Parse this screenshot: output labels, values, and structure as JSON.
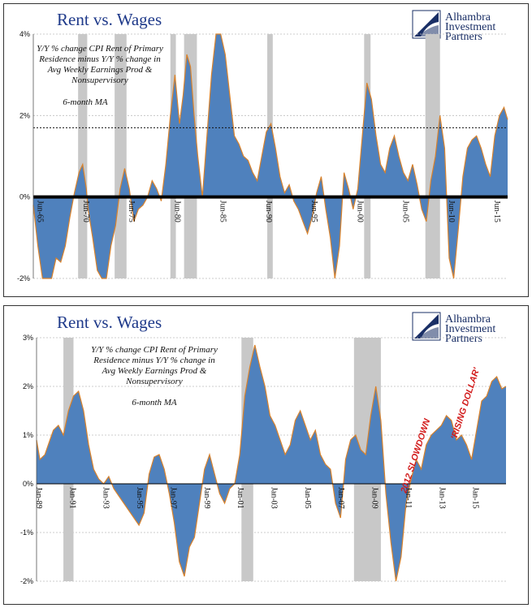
{
  "brand": {
    "line1": "Alhambra",
    "line2": "Investment",
    "line3": "Partners"
  },
  "colors": {
    "area_fill": "#4f81bd",
    "area_stroke": "#d9822b",
    "recession": "#c8c8c8",
    "title": "#1f3a8a",
    "annotation": "#d21c1c"
  },
  "chart_data": [
    {
      "type": "area",
      "title": "Rent vs. Wages",
      "note_lines": [
        "Y/Y % change CPI Rent of Primary",
        "Residence minus Y/Y % change in",
        "Avg Weekly Earnings Prod &",
        "Nonsupervisory"
      ],
      "note_ma": "6-month MA",
      "ylim": [
        -2,
        4
      ],
      "yticks": [
        "-2%",
        "0%",
        "2%",
        "4%"
      ],
      "xlim": [
        1965,
        2016.9
      ],
      "xticks": [
        {
          "x": 1965.5,
          "label": "Jun-65"
        },
        {
          "x": 1970.5,
          "label": "Jun-70"
        },
        {
          "x": 1975.5,
          "label": "Jun-75"
        },
        {
          "x": 1980.5,
          "label": "Jun-80"
        },
        {
          "x": 1985.5,
          "label": "Jun-85"
        },
        {
          "x": 1990.5,
          "label": "Jun-90"
        },
        {
          "x": 1995.5,
          "label": "Jun-95"
        },
        {
          "x": 2000.5,
          "label": "Jun-00"
        },
        {
          "x": 2005.5,
          "label": "Jun-05"
        },
        {
          "x": 2010.5,
          "label": "Jun-10"
        },
        {
          "x": 2015.5,
          "label": "Jun-15"
        }
      ],
      "reference_line": 1.7,
      "recessions": [
        [
          1969.9,
          1970.9
        ],
        [
          1973.9,
          1975.2
        ],
        [
          1980.0,
          1980.6
        ],
        [
          1981.5,
          1982.9
        ],
        [
          1990.6,
          1991.2
        ],
        [
          2001.2,
          2001.9
        ],
        [
          2007.9,
          2009.5
        ]
      ],
      "series": [
        {
          "x": [
            1965.0,
            1965.5,
            1966.0,
            1966.5,
            1967.0,
            1967.5,
            1968.0,
            1968.5,
            1969.0,
            1969.5,
            1970.0,
            1970.4,
            1970.8,
            1971.0,
            1971.5,
            1972.0,
            1972.5,
            1973.0,
            1973.5,
            1974.0,
            1974.5,
            1975.0,
            1975.5,
            1976.0,
            1976.5,
            1977.0,
            1977.5,
            1978.0,
            1978.5,
            1979.0,
            1979.5,
            1980.0,
            1980.5,
            1981.0,
            1981.4,
            1981.8,
            1982.2,
            1982.6,
            1983.0,
            1983.5,
            1984.0,
            1984.5,
            1985.0,
            1985.5,
            1986.0,
            1986.5,
            1987.0,
            1987.5,
            1988.0,
            1988.5,
            1989.0,
            1989.5,
            1990.0,
            1990.5,
            1991.0,
            1991.5,
            1992.0,
            1992.5,
            1993.0,
            1993.5,
            1994.0,
            1994.5,
            1995.0,
            1995.5,
            1996.0,
            1996.5,
            1997.0,
            1997.5,
            1998.0,
            1998.5,
            1999.0,
            1999.5,
            2000.0,
            2000.5,
            2001.0,
            2001.5,
            2002.0,
            2002.5,
            2003.0,
            2003.5,
            2004.0,
            2004.5,
            2005.0,
            2005.5,
            2006.0,
            2006.5,
            2007.0,
            2007.5,
            2008.0,
            2008.5,
            2009.0,
            2009.5,
            2010.0,
            2010.5,
            2011.0,
            2011.5,
            2012.0,
            2012.5,
            2013.0,
            2013.5,
            2014.0,
            2014.5,
            2015.0,
            2015.5,
            2016.0,
            2016.5,
            2016.9
          ],
          "values": [
            -0.2,
            -1.2,
            -2.0,
            -2.5,
            -2.0,
            -1.5,
            -1.6,
            -1.2,
            -0.5,
            0.1,
            0.6,
            0.8,
            0.2,
            -0.3,
            -1.0,
            -1.8,
            -2.2,
            -2.0,
            -1.2,
            -0.7,
            0.2,
            0.7,
            0.2,
            -0.6,
            -0.3,
            -0.2,
            0.0,
            0.4,
            0.2,
            -0.1,
            0.8,
            2.0,
            3.0,
            1.8,
            2.5,
            3.5,
            3.2,
            2.0,
            1.0,
            0.0,
            1.5,
            3.0,
            4.0,
            4.0,
            3.5,
            2.5,
            1.5,
            1.3,
            1.0,
            0.9,
            0.6,
            0.4,
            1.0,
            1.6,
            1.8,
            1.2,
            0.5,
            0.1,
            0.3,
            -0.1,
            -0.3,
            -0.6,
            -0.9,
            -0.5,
            0.1,
            0.5,
            -0.3,
            -1.0,
            -2.0,
            -1.2,
            0.6,
            0.2,
            -0.3,
            0.2,
            1.5,
            2.8,
            2.4,
            1.5,
            0.8,
            0.6,
            1.2,
            1.5,
            1.0,
            0.6,
            0.4,
            0.8,
            0.3,
            -0.3,
            -0.6,
            0.4,
            1.0,
            2.0,
            1.2,
            -1.5,
            -2.0,
            -0.8,
            0.5,
            1.2,
            1.4,
            1.5,
            1.2,
            0.8,
            0.5,
            1.5,
            2.0,
            2.2,
            1.9
          ]
        }
      ]
    },
    {
      "type": "area",
      "title": "Rent vs. Wages",
      "note_lines": [
        "Y/Y % change CPI Rent of Primary",
        "Residence minus Y/Y % change in",
        "Avg Weekly Earnings Prod &",
        "Nonsupervisory"
      ],
      "note_ma": "6-month MA",
      "ylim": [
        -2,
        3
      ],
      "yticks": [
        "-2%",
        "-1%",
        "0%",
        "1%",
        "2%",
        "3%"
      ],
      "xlim": [
        1989.0,
        2016.95
      ],
      "xticks": [
        {
          "x": 1989.0,
          "label": "Jan-89"
        },
        {
          "x": 1991.0,
          "label": "Jan-91"
        },
        {
          "x": 1993.0,
          "label": "Jan-93"
        },
        {
          "x": 1995.0,
          "label": "Jan-95"
        },
        {
          "x": 1997.0,
          "label": "Jan-97"
        },
        {
          "x": 1999.0,
          "label": "Jan-99"
        },
        {
          "x": 2001.0,
          "label": "Jan-01"
        },
        {
          "x": 2003.0,
          "label": "Jan-03"
        },
        {
          "x": 2005.0,
          "label": "Jan-05"
        },
        {
          "x": 2007.0,
          "label": "Jan-07"
        },
        {
          "x": 2009.0,
          "label": "Jan-09"
        },
        {
          "x": 2011.0,
          "label": "Jan-11"
        },
        {
          "x": 2013.0,
          "label": "Jan-13"
        },
        {
          "x": 2015.0,
          "label": "Jan-15"
        }
      ],
      "recessions": [
        [
          1990.6,
          1991.2
        ],
        [
          2001.2,
          2001.9
        ],
        [
          2007.9,
          2009.5
        ]
      ],
      "annotations": [
        {
          "text": "2012 SLOWDOWN",
          "x": 2011.0,
          "y": -0.2
        },
        {
          "text": "'RISING DOLLAR'",
          "x": 2014.0,
          "y": 0.9
        }
      ],
      "series": [
        {
          "x": [
            1989.0,
            1989.2,
            1989.5,
            1989.8,
            1990.0,
            1990.3,
            1990.6,
            1990.9,
            1991.2,
            1991.5,
            1991.8,
            1992.1,
            1992.4,
            1992.7,
            1993.0,
            1993.3,
            1993.6,
            1993.9,
            1994.2,
            1994.5,
            1994.8,
            1995.1,
            1995.4,
            1995.7,
            1996.0,
            1996.3,
            1996.6,
            1996.9,
            1997.2,
            1997.5,
            1997.8,
            1998.1,
            1998.4,
            1998.7,
            1999.0,
            1999.3,
            1999.6,
            1999.9,
            2000.2,
            2000.5,
            2000.8,
            2001.1,
            2001.4,
            2001.7,
            2002.0,
            2002.3,
            2002.6,
            2002.9,
            2003.2,
            2003.5,
            2003.8,
            2004.1,
            2004.4,
            2004.7,
            2005.0,
            2005.3,
            2005.6,
            2005.9,
            2006.2,
            2006.5,
            2006.8,
            2007.1,
            2007.4,
            2007.7,
            2008.0,
            2008.3,
            2008.6,
            2008.9,
            2009.2,
            2009.5,
            2009.8,
            2010.1,
            2010.4,
            2010.7,
            2011.0,
            2011.3,
            2011.6,
            2011.9,
            2012.2,
            2012.5,
            2012.8,
            2013.1,
            2013.4,
            2013.7,
            2014.0,
            2014.3,
            2014.6,
            2014.9,
            2015.2,
            2015.5,
            2015.8,
            2016.1,
            2016.4,
            2016.7,
            2016.95
          ],
          "values": [
            0.9,
            0.5,
            0.6,
            0.9,
            1.1,
            1.2,
            1.0,
            1.5,
            1.8,
            1.9,
            1.5,
            0.8,
            0.3,
            0.1,
            0.0,
            0.15,
            -0.1,
            -0.25,
            -0.4,
            -0.55,
            -0.7,
            -0.85,
            -0.6,
            0.2,
            0.55,
            0.6,
            0.3,
            -0.2,
            -0.8,
            -1.6,
            -1.9,
            -1.3,
            -1.1,
            -0.4,
            0.3,
            0.6,
            0.2,
            -0.2,
            -0.4,
            -0.1,
            0.0,
            0.6,
            1.8,
            2.4,
            2.85,
            2.4,
            2.0,
            1.4,
            1.2,
            0.9,
            0.6,
            0.8,
            1.3,
            1.5,
            1.2,
            0.9,
            1.1,
            0.6,
            0.4,
            0.3,
            -0.4,
            -0.7,
            0.5,
            0.9,
            1.0,
            0.7,
            0.6,
            1.4,
            2.0,
            1.3,
            -0.2,
            -1.2,
            -2.0,
            -1.5,
            -0.4,
            0.1,
            0.5,
            0.3,
            0.8,
            1.0,
            1.1,
            1.2,
            1.4,
            1.3,
            0.9,
            1.0,
            0.8,
            0.5,
            1.1,
            1.7,
            1.8,
            2.1,
            2.2,
            1.95,
            2.0
          ]
        }
      ]
    }
  ]
}
